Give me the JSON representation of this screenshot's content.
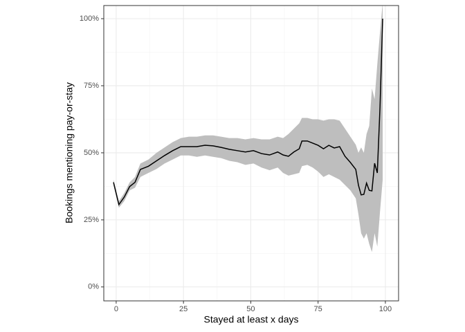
{
  "chart_data": {
    "type": "line_ribbon",
    "xlabel": "Stayed at least x days",
    "ylabel": "Bookings mentioning pay-or-stay",
    "x": [
      -1,
      1,
      3,
      5,
      7,
      9,
      12,
      15,
      18,
      21,
      24,
      27,
      30,
      33,
      36,
      39,
      42,
      45,
      48,
      51,
      54,
      57,
      60,
      62,
      64,
      66,
      68,
      69,
      71,
      73,
      75,
      77,
      79,
      81,
      83,
      85,
      87,
      89,
      90,
      91,
      92,
      93,
      94,
      95,
      96,
      97,
      98,
      99
    ],
    "values": [
      39,
      30.7,
      33.5,
      37.4,
      39,
      43.8,
      45,
      47,
      49,
      50.8,
      52.3,
      52.3,
      52.3,
      52.8,
      52.6,
      52,
      51.3,
      50.8,
      50.3,
      50.8,
      49.7,
      49.2,
      50.3,
      49.2,
      48.7,
      50.3,
      51.5,
      54.4,
      54.4,
      53.6,
      52.8,
      51.5,
      52.8,
      51.8,
      52.3,
      48.7,
      46.4,
      43.8,
      37.9,
      34.3,
      34.5,
      38.7,
      36,
      35.8,
      46.1,
      42.5,
      67,
      100
    ],
    "upper": [
      40,
      32,
      35,
      39,
      41,
      46,
      47.5,
      50,
      52,
      54,
      55.5,
      56,
      56,
      56.5,
      56.5,
      56,
      55.5,
      55.5,
      55,
      55.5,
      55,
      55,
      56,
      55.5,
      57,
      59,
      61,
      63,
      63,
      62.5,
      62.5,
      62,
      62.5,
      62.5,
      62,
      59,
      56,
      53,
      50,
      52,
      50,
      57,
      60,
      74,
      70,
      83,
      95,
      106
    ],
    "lower": [
      38,
      29.5,
      32,
      36,
      37,
      41,
      42.5,
      44,
      46,
      47.5,
      49,
      49,
      48.5,
      49,
      48.5,
      48,
      47,
      46.5,
      45.5,
      46,
      44.5,
      43.5,
      44.5,
      42.5,
      41.5,
      42,
      42.5,
      45,
      45.5,
      44.5,
      43,
      41,
      42,
      41,
      40,
      38,
      36,
      33,
      27,
      20,
      18,
      20,
      16,
      13,
      20,
      15,
      28,
      40
    ],
    "line_color": "#000000",
    "ribbon_color": "#bebebe",
    "xlim": [
      -4.6,
      104.9
    ],
    "ylim": [
      -5.2,
      104.9
    ],
    "xticks": [
      0,
      25,
      50,
      75,
      100
    ],
    "yticks": [
      {
        "value": 0,
        "label": "0%"
      },
      {
        "value": 25,
        "label": "25%"
      },
      {
        "value": 50,
        "label": "50%"
      },
      {
        "value": 75,
        "label": "75%"
      },
      {
        "value": 100,
        "label": "100%"
      }
    ],
    "x_minor_ticks": [
      12.5,
      37.5,
      62.5,
      87.5
    ],
    "y_minor_ticks": [
      12.5,
      37.5,
      62.5,
      87.5
    ],
    "grid": true
  }
}
